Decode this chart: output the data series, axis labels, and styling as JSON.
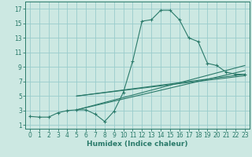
{
  "xlabel": "Humidex (Indice chaleur)",
  "background_color": "#cce8e2",
  "grid_color": "#99cccc",
  "line_color": "#2a7a6a",
  "xlim": [
    -0.5,
    23.5
  ],
  "ylim": [
    0.5,
    18
  ],
  "xticks": [
    0,
    1,
    2,
    3,
    4,
    5,
    6,
    7,
    8,
    9,
    10,
    11,
    12,
    13,
    14,
    15,
    16,
    17,
    18,
    19,
    20,
    21,
    22,
    23
  ],
  "yticks": [
    1,
    3,
    5,
    7,
    9,
    11,
    13,
    15,
    17
  ],
  "main_series": {
    "x": [
      0,
      1,
      2,
      3,
      4,
      5,
      6,
      7,
      8,
      9,
      10,
      11,
      12,
      13,
      14,
      15,
      16,
      17,
      18,
      19,
      20,
      21,
      22,
      23
    ],
    "y": [
      2.2,
      2.1,
      2.1,
      2.7,
      3.0,
      3.1,
      3.1,
      2.5,
      1.5,
      2.9,
      5.5,
      9.8,
      15.3,
      15.5,
      16.8,
      16.8,
      15.5,
      13.0,
      12.5,
      9.5,
      9.2,
      8.3,
      8.0,
      8.0
    ]
  },
  "straight_lines": [
    {
      "x": [
        5,
        23
      ],
      "y": [
        3.1,
        9.2
      ]
    },
    {
      "x": [
        5,
        23
      ],
      "y": [
        3.1,
        8.5
      ]
    },
    {
      "x": [
        5,
        23
      ],
      "y": [
        5,
        8.0
      ]
    },
    {
      "x": [
        5,
        23
      ],
      "y": [
        5,
        7.8
      ]
    }
  ]
}
